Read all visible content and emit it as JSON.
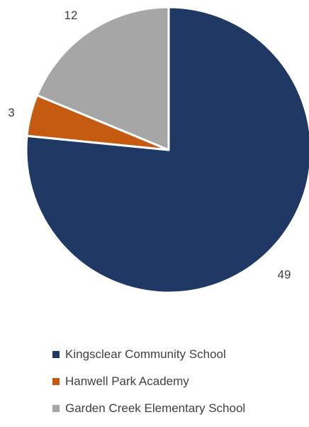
{
  "chart_data": {
    "type": "pie",
    "categories": [
      "Kingsclear Community School",
      "Hanwell Park Academy",
      "Garden Creek Elementary School"
    ],
    "values": [
      49,
      3,
      12
    ],
    "data_labels": [
      "49",
      "3",
      "12"
    ],
    "colors": [
      "#1f3864",
      "#c55a11",
      "#a6a6a6"
    ],
    "legend_position": "bottom",
    "title": ""
  }
}
